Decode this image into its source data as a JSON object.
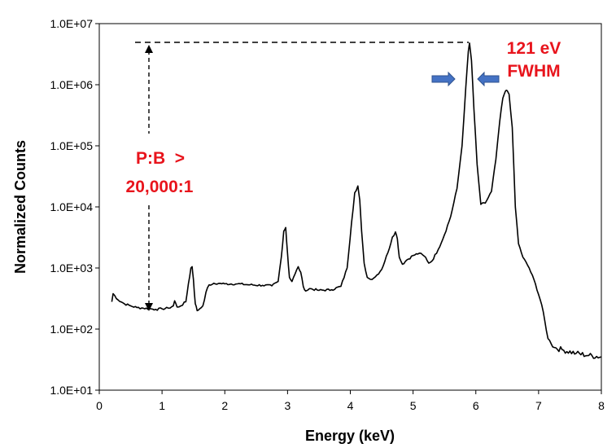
{
  "chart_data": {
    "type": "line",
    "title": "",
    "xlabel": "Energy (keV)",
    "ylabel": "Normalized Counts",
    "xlim": [
      0,
      8
    ],
    "ylim": [
      10,
      10000000
    ],
    "y_scale": "log",
    "x_ticks": [
      "0",
      "1",
      "2",
      "3",
      "4",
      "5",
      "6",
      "7",
      "8"
    ],
    "y_ticks": [
      "1.0E+01",
      "1.0E+02",
      "1.0E+03",
      "1.0E+04",
      "1.0E+05",
      "1.0E+06",
      "1.0E+07"
    ],
    "grid": false,
    "legend": "none",
    "colors": {
      "line": "#000000",
      "annotation_text": "#e8141c",
      "arrow": "#4472c4"
    },
    "series": [
      {
        "x": [
          0.2,
          0.22,
          0.3,
          0.4,
          0.5,
          0.6,
          0.7,
          0.8,
          0.9,
          1.0,
          1.1,
          1.18,
          1.2,
          1.24,
          1.3,
          1.38,
          1.42,
          1.46,
          1.48,
          1.5,
          1.53,
          1.56,
          1.6,
          1.65,
          1.7,
          1.75,
          1.8,
          1.9,
          2.0,
          2.2,
          2.4,
          2.6,
          2.75,
          2.85,
          2.9,
          2.94,
          2.97,
          3.0,
          3.03,
          3.07,
          3.12,
          3.17,
          3.21,
          3.25,
          3.29,
          3.35,
          3.5,
          3.7,
          3.85,
          3.95,
          4.02,
          4.07,
          4.12,
          4.15,
          4.18,
          4.22,
          4.27,
          4.32,
          4.4,
          4.5,
          4.6,
          4.67,
          4.72,
          4.75,
          4.78,
          4.83,
          4.9,
          5.0,
          5.1,
          5.2,
          5.25,
          5.3,
          5.4,
          5.5,
          5.6,
          5.7,
          5.78,
          5.84,
          5.88,
          5.9,
          5.93,
          5.97,
          6.02,
          6.08,
          6.15,
          6.25,
          6.32,
          6.38,
          6.43,
          6.47,
          6.5,
          6.53,
          6.58,
          6.63,
          6.68,
          6.75,
          6.85,
          6.95,
          7.05,
          7.15,
          7.25,
          7.4,
          7.6,
          7.8,
          8.0
        ],
        "y": [
          280,
          380,
          300,
          260,
          240,
          225,
          220,
          215,
          210,
          215,
          220,
          240,
          290,
          230,
          240,
          280,
          550,
          1000,
          1050,
          650,
          260,
          200,
          215,
          240,
          400,
          530,
          540,
          560,
          550,
          550,
          530,
          520,
          510,
          600,
          1500,
          4000,
          4600,
          1700,
          700,
          600,
          800,
          1050,
          850,
          500,
          420,
          460,
          430,
          440,
          500,
          1000,
          5500,
          17000,
          22000,
          13000,
          4000,
          1200,
          700,
          650,
          720,
          950,
          1800,
          3200,
          3900,
          3000,
          1500,
          1150,
          1350,
          1600,
          1750,
          1500,
          1200,
          1300,
          2000,
          3500,
          7000,
          20000,
          100000,
          900000,
          3500000,
          4800000,
          2500000,
          400000,
          50000,
          11000,
          11500,
          18000,
          60000,
          250000,
          600000,
          780000,
          800000,
          700000,
          200000,
          10000,
          2500,
          1500,
          1000,
          550,
          250,
          70,
          50,
          45,
          40,
          37,
          35
        ]
      }
    ],
    "annotations": [
      {
        "text": "121 eV",
        "color": "#e8141c"
      },
      {
        "text": "FWHM",
        "color": "#e8141c"
      },
      {
        "text": "P:B  >",
        "color": "#e8141c"
      },
      {
        "text": "20,000:1",
        "color": "#e8141c"
      }
    ]
  }
}
